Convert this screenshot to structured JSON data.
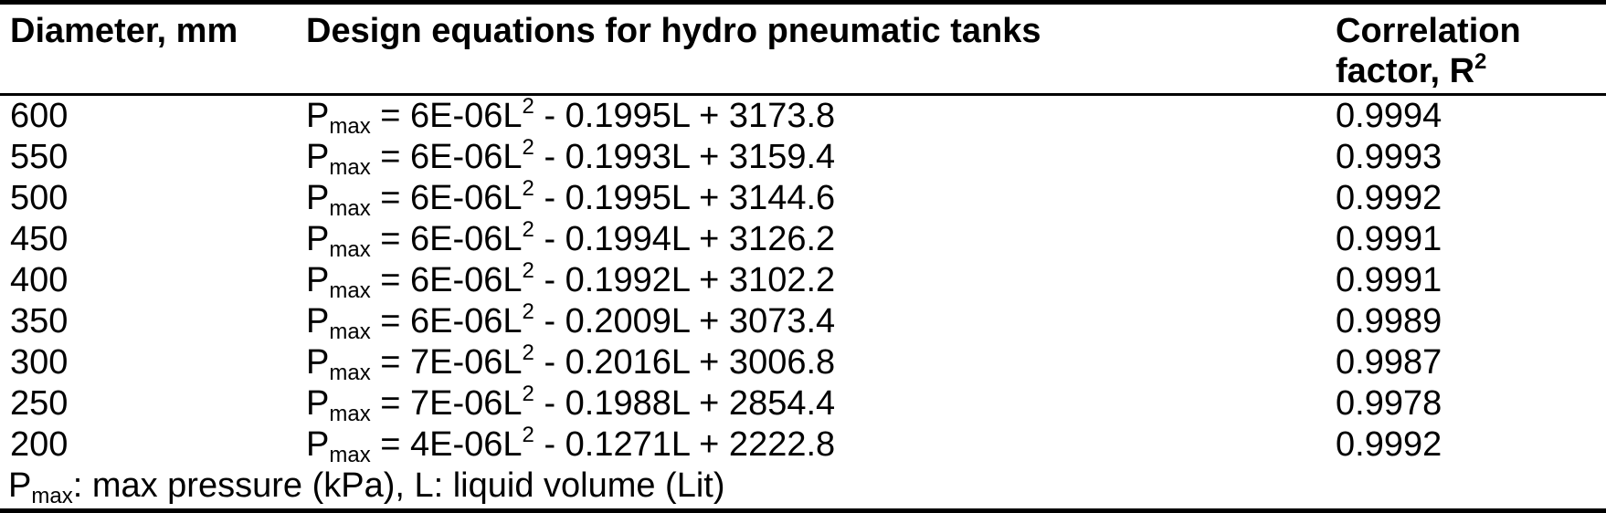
{
  "colors": {
    "text": "#000000",
    "background": "#ffffff",
    "rule": "#000000"
  },
  "table": {
    "headers": {
      "col1": "Diameter, mm",
      "col2": "Design equations for hydro pneumatic tanks",
      "col3": {
        "text": "Correlation factor, R",
        "sup": "2"
      }
    },
    "rows": [
      {
        "diameter": "600",
        "eq": {
          "base": "P",
          "sub": "max",
          "mid": " = 6E-06L",
          "sup": "2",
          "tail": " - 0.1995L + 3173.8"
        },
        "r2": "0.9994"
      },
      {
        "diameter": "550",
        "eq": {
          "base": "P",
          "sub": "max",
          "mid": " = 6E-06L",
          "sup": "2",
          "tail": " - 0.1993L + 3159.4"
        },
        "r2": "0.9993"
      },
      {
        "diameter": "500",
        "eq": {
          "base": "P",
          "sub": "max",
          "mid": " = 6E-06L",
          "sup": "2",
          "tail": " - 0.1995L + 3144.6"
        },
        "r2": "0.9992"
      },
      {
        "diameter": "450",
        "eq": {
          "base": "P",
          "sub": "max",
          "mid": " = 6E-06L",
          "sup": "2",
          "tail": " - 0.1994L + 3126.2"
        },
        "r2": "0.9991"
      },
      {
        "diameter": "400",
        "eq": {
          "base": "P",
          "sub": "max",
          "mid": " = 6E-06L",
          "sup": "2",
          "tail": " - 0.1992L + 3102.2"
        },
        "r2": "0.9991"
      },
      {
        "diameter": "350",
        "eq": {
          "base": "P",
          "sub": "max",
          "mid": " = 6E-06L",
          "sup": "2",
          "tail": " - 0.2009L + 3073.4"
        },
        "r2": "0.9989"
      },
      {
        "diameter": "300",
        "eq": {
          "base": "P",
          "sub": "max",
          "mid": " = 7E-06L",
          "sup": "2",
          "tail": " - 0.2016L + 3006.8"
        },
        "r2": "0.9987"
      },
      {
        "diameter": "250",
        "eq": {
          "base": "P",
          "sub": "max",
          "mid": " = 7E-06L",
          "sup": "2",
          "tail": " - 0.1988L + 2854.4"
        },
        "r2": "0.9978"
      },
      {
        "diameter": "200",
        "eq": {
          "base": "P",
          "sub": "max",
          "mid": " = 4E-06L",
          "sup": "2",
          "tail": " - 0.1271L + 2222.8"
        },
        "r2": "0.9992"
      }
    ],
    "footnote": {
      "base": "P",
      "sub": "max",
      "tail": ": max pressure (kPa), L: liquid volume (Lit)"
    }
  }
}
